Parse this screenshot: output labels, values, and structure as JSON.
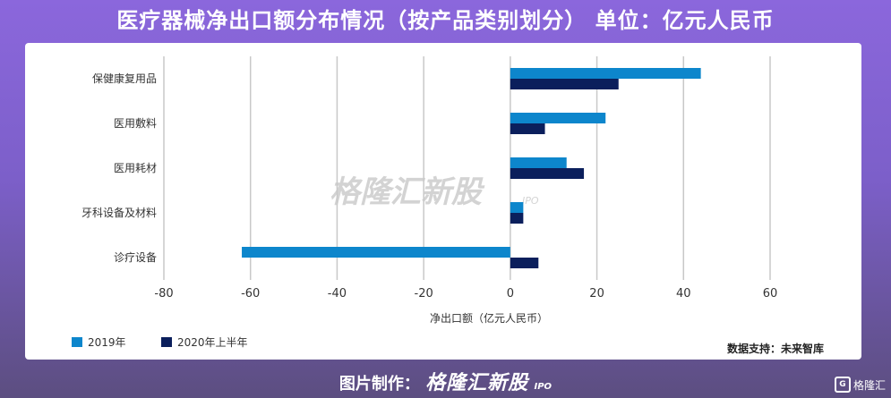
{
  "title": "医疗器械净出口额分布情况（按产品类别划分） 单位：亿元人民币",
  "chart_data": {
    "type": "bar",
    "orientation": "horizontal",
    "categories": [
      "保健康复用品",
      "医用敷料",
      "医用耗材",
      "牙科设备及材料",
      "诊疗设备"
    ],
    "series": [
      {
        "name": "2019年",
        "values": [
          44,
          22,
          13,
          3,
          -62
        ],
        "color": "#0d86cc"
      },
      {
        "name": "2020年上半年",
        "values": [
          25,
          8,
          17,
          3,
          6.5
        ],
        "color": "#0b1f5c"
      }
    ],
    "xlabel": "净出口额（亿元人民币）",
    "xlim": [
      -80,
      60
    ],
    "xticks": [
      -80,
      -60,
      -40,
      -20,
      0,
      20,
      40,
      60
    ],
    "grid": "vertical",
    "legend_position": "bottom-left"
  },
  "watermark": {
    "text": "格隆汇新股",
    "sub": "IPO"
  },
  "source": "数据支持：未来智库",
  "footer": {
    "prefix": "图片制作：",
    "brand": "格隆汇新股",
    "brand_sub": "IPO"
  },
  "corner_logo": {
    "mark": "G",
    "text": "格隆汇"
  }
}
